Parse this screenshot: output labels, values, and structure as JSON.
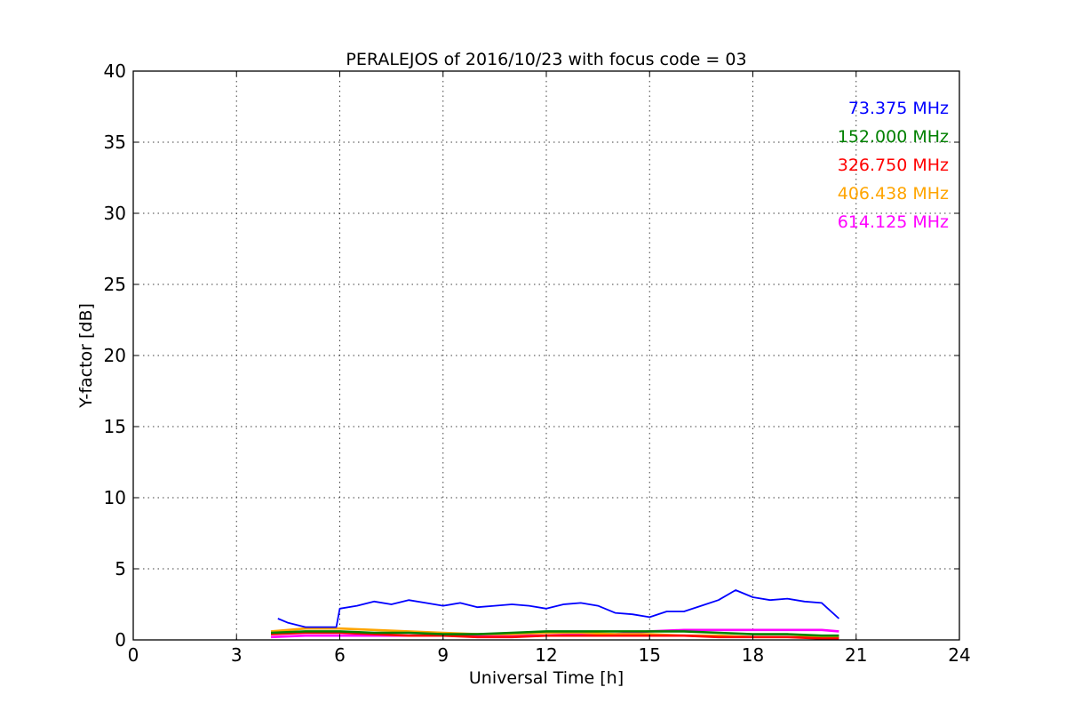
{
  "chart_data": {
    "type": "line",
    "title": "PERALEJOS of 2016/10/23 with focus code = 03",
    "xlabel": "Universal Time [h]",
    "ylabel": "Y-factor [dB]",
    "xlim": [
      0,
      24
    ],
    "ylim": [
      0,
      40
    ],
    "xticks": [
      0,
      3,
      6,
      9,
      12,
      15,
      18,
      21,
      24
    ],
    "yticks": [
      0,
      5,
      10,
      15,
      20,
      25,
      30,
      35,
      40
    ],
    "grid": true,
    "legend_position": "top-right",
    "series": [
      {
        "name": "73.375 MHz",
        "color": "#0000ff",
        "x": [
          4.2,
          4.5,
          5.0,
          5.5,
          5.9,
          6.0,
          6.5,
          7.0,
          7.5,
          8.0,
          8.5,
          9.0,
          9.5,
          10.0,
          10.5,
          11.0,
          11.5,
          12.0,
          12.5,
          13.0,
          13.5,
          14.0,
          14.5,
          15.0,
          15.5,
          16.0,
          16.5,
          17.0,
          17.5,
          18.0,
          18.5,
          19.0,
          19.5,
          20.0,
          20.5
        ],
        "y": [
          1.5,
          1.2,
          0.9,
          0.9,
          0.9,
          2.2,
          2.4,
          2.7,
          2.5,
          2.8,
          2.6,
          2.4,
          2.6,
          2.3,
          2.4,
          2.5,
          2.4,
          2.2,
          2.5,
          2.6,
          2.4,
          1.9,
          1.8,
          1.6,
          2.0,
          2.0,
          2.4,
          2.8,
          3.5,
          3.0,
          2.8,
          2.9,
          2.7,
          2.6,
          1.5
        ]
      },
      {
        "name": "152.000 MHz",
        "color": "#008000",
        "x": [
          4.0,
          5.0,
          6.0,
          7.0,
          8.0,
          9.0,
          10.0,
          11.0,
          12.0,
          13.0,
          14.0,
          15.0,
          16.0,
          17.0,
          18.0,
          19.0,
          20.0,
          20.5
        ],
        "y": [
          0.5,
          0.6,
          0.6,
          0.5,
          0.5,
          0.4,
          0.4,
          0.5,
          0.6,
          0.6,
          0.6,
          0.6,
          0.6,
          0.5,
          0.4,
          0.4,
          0.3,
          0.3
        ]
      },
      {
        "name": "326.750 MHz",
        "color": "#ff0000",
        "x": [
          4.0,
          5.0,
          6.0,
          7.0,
          8.0,
          9.0,
          10.0,
          11.0,
          12.0,
          13.0,
          14.0,
          15.0,
          16.0,
          17.0,
          18.0,
          19.0,
          20.0,
          20.5
        ],
        "y": [
          0.4,
          0.5,
          0.5,
          0.4,
          0.3,
          0.3,
          0.2,
          0.2,
          0.3,
          0.3,
          0.3,
          0.3,
          0.3,
          0.2,
          0.2,
          0.2,
          0.1,
          0.1
        ]
      },
      {
        "name": "406.438 MHz",
        "color": "#ffa500",
        "x": [
          4.0,
          5.0,
          6.0,
          7.0,
          8.0,
          9.0,
          10.0,
          11.0,
          12.0,
          13.0,
          14.0,
          15.0,
          16.0,
          17.0,
          18.0,
          19.0,
          20.0,
          20.5
        ],
        "y": [
          0.6,
          0.8,
          0.8,
          0.7,
          0.6,
          0.5,
          0.4,
          0.4,
          0.5,
          0.5,
          0.4,
          0.4,
          0.3,
          0.3,
          0.2,
          0.2,
          0.2,
          0.2
        ]
      },
      {
        "name": "614.125 MHz",
        "color": "#ff00ff",
        "x": [
          4.0,
          5.0,
          6.0,
          7.0,
          8.0,
          9.0,
          10.0,
          11.0,
          12.0,
          13.0,
          14.0,
          15.0,
          16.0,
          17.0,
          18.0,
          19.0,
          20.0,
          20.5
        ],
        "y": [
          0.2,
          0.3,
          0.3,
          0.3,
          0.3,
          0.3,
          0.3,
          0.3,
          0.3,
          0.4,
          0.4,
          0.6,
          0.7,
          0.7,
          0.7,
          0.7,
          0.7,
          0.6
        ]
      }
    ]
  }
}
